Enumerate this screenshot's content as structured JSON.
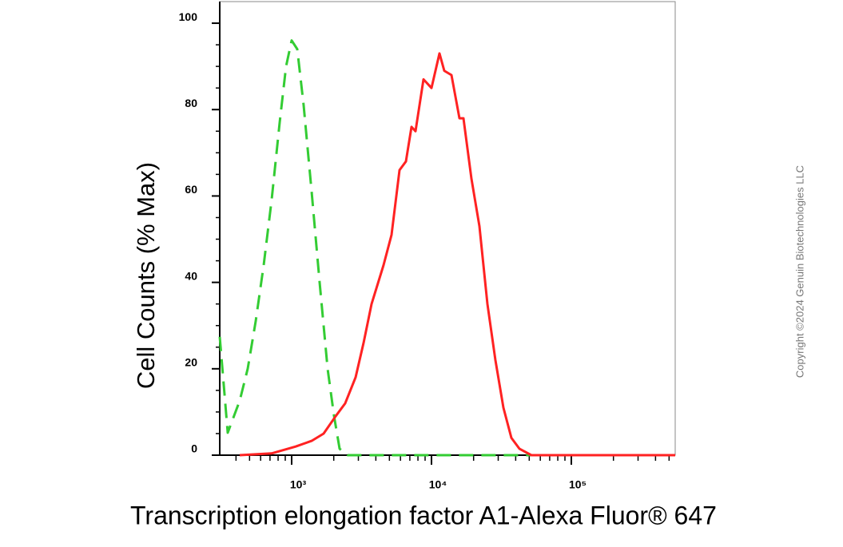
{
  "chart_data": {
    "type": "line",
    "xlabel": "Transcription elongation factor A1-Alexa Fluor® 647",
    "ylabel": "Cell Counts (% Max)",
    "copyright": "Copyright ©2024 Genuin Biotechnologies LLC",
    "xscale": "log",
    "xlim": [
      306,
      553000
    ],
    "ylim": [
      0,
      105
    ],
    "xticks": [
      {
        "value": 1000,
        "label": "10³"
      },
      {
        "value": 10000,
        "label": "10⁴"
      },
      {
        "value": 100000,
        "label": "10⁵"
      }
    ],
    "xminorticks": [
      400,
      500,
      600,
      700,
      800,
      900,
      2000,
      3000,
      4000,
      5000,
      6000,
      7000,
      8000,
      9000,
      20000,
      30000,
      40000,
      50000,
      60000,
      70000,
      80000,
      90000,
      200000,
      300000,
      400000,
      500000
    ],
    "yticks": [
      0,
      20,
      40,
      60,
      80,
      100
    ],
    "yminorticks": [
      5,
      10,
      15,
      25,
      30,
      35,
      45,
      50,
      55,
      65,
      70,
      75,
      85,
      90,
      95
    ],
    "series": [
      {
        "color": "#33cc33",
        "dash": true,
        "x": [
          306,
          349,
          425,
          485,
          553,
          631,
          719,
          821,
          912,
          1000,
          1096,
          1218,
          1389,
          1585,
          1807,
          2010,
          2203,
          2512,
          553000
        ],
        "values": [
          27.4,
          5.2,
          12.6,
          20,
          31,
          44,
          59,
          77,
          90,
          96,
          94,
          81,
          61,
          40,
          20,
          9,
          1.5,
          0,
          0
        ]
      },
      {
        "color": "#ff2222",
        "dash": false,
        "x": [
          425,
          719,
          1068,
          1389,
          1693,
          2062,
          2415,
          2865,
          3268,
          3727,
          4540,
          5179,
          5906,
          6563,
          7197,
          7690,
          8770,
          10000,
          11400,
          12340,
          13890,
          15850,
          16930,
          19310,
          22030,
          25120,
          28650,
          32680,
          37270,
          42510,
          51790,
          553000
        ],
        "values": [
          0,
          0.4,
          2,
          3.3,
          5,
          9,
          12,
          18,
          26,
          35,
          44,
          51,
          66,
          68,
          76,
          75,
          87,
          85,
          93,
          89,
          88,
          78,
          78,
          64,
          53,
          35,
          22,
          11,
          4,
          1.5,
          0,
          0
        ]
      }
    ]
  }
}
